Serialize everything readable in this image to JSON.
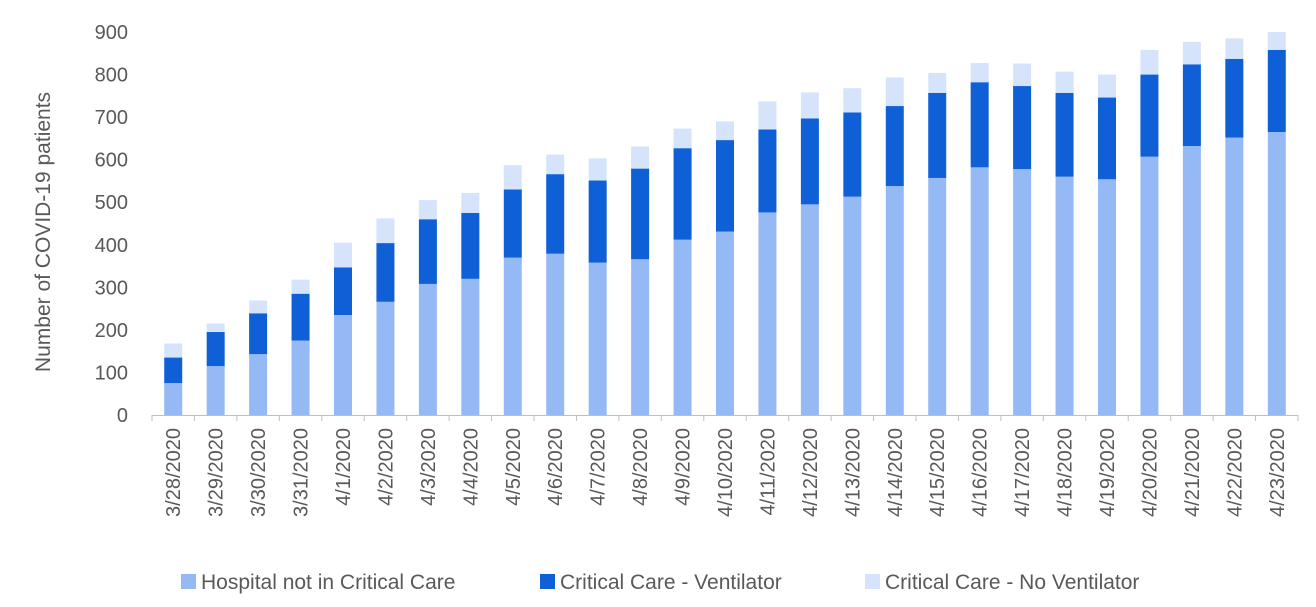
{
  "chart_data": {
    "type": "bar",
    "stacked": true,
    "ylabel": "Number of COVID-19 patients",
    "ylim": [
      0,
      900
    ],
    "yticks": [
      0,
      100,
      200,
      300,
      400,
      500,
      600,
      700,
      800,
      900
    ],
    "grid": false,
    "legend_position": "bottom",
    "categories": [
      "3/28/2020",
      "3/29/2020",
      "3/30/2020",
      "3/31/2020",
      "4/1/2020",
      "4/2/2020",
      "4/3/2020",
      "4/4/2020",
      "4/5/2020",
      "4/6/2020",
      "4/7/2020",
      "4/8/2020",
      "4/9/2020",
      "4/10/2020",
      "4/11/2020",
      "4/12/2020",
      "4/13/2020",
      "4/14/2020",
      "4/15/2020",
      "4/16/2020",
      "4/17/2020",
      "4/18/2020",
      "4/19/2020",
      "4/20/2020",
      "4/21/2020",
      "4/22/2020",
      "4/23/2020"
    ],
    "series": [
      {
        "name": "Hospital not in Critical Care",
        "color": "#94B9F5",
        "values": [
          75,
          115,
          143,
          175,
          235,
          266,
          308,
          320,
          370,
          379,
          358,
          366,
          412,
          431,
          476,
          495,
          513,
          538,
          557,
          582,
          578,
          560,
          554,
          607,
          632,
          652,
          665
        ]
      },
      {
        "name": "Critical Care - Ventilator",
        "color": "#0F5FD6",
        "values": [
          60,
          80,
          96,
          110,
          112,
          138,
          152,
          155,
          160,
          187,
          193,
          213,
          215,
          215,
          195,
          202,
          198,
          188,
          200,
          200,
          195,
          197,
          192,
          193,
          192,
          185,
          193
        ]
      },
      {
        "name": "Critical Care - No Ventilator",
        "color": "#D6E4FB",
        "values": [
          33,
          20,
          30,
          33,
          58,
          58,
          45,
          47,
          57,
          46,
          52,
          52,
          46,
          44,
          66,
          61,
          57,
          67,
          47,
          45,
          53,
          50,
          54,
          58,
          53,
          48,
          42
        ]
      }
    ]
  }
}
